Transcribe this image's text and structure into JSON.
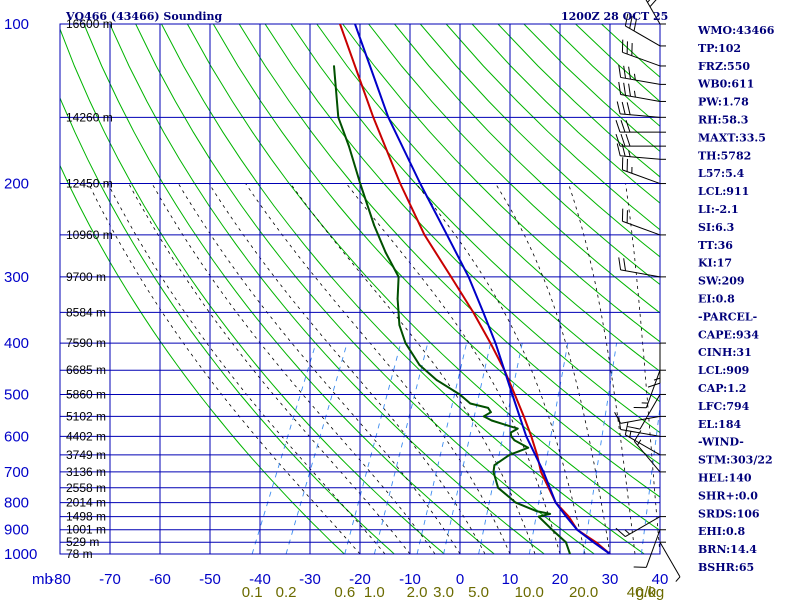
{
  "header": {
    "title": "VQ466 (43466) Sounding",
    "time": "1200Z 28 OCT 25"
  },
  "indices": [
    "WMO:43466",
    "TP:102",
    "FRZ:550",
    "WB0:611",
    "PW:1.78",
    "RH:58.3",
    "MAXT:33.5",
    "TH:5782",
    "L57:5.4",
    "LCL:911",
    "LI:-2.1",
    "SI:6.3",
    "TT:36",
    "KI:17",
    "SW:209",
    "EI:0.8",
    "-PARCEL-",
    "CAPE:934",
    "CINH:31",
    "LCL:909",
    "CAP:1.2",
    "LFC:794",
    "EL:184",
    "-WIND-",
    "STM:303/22",
    "HEL:140",
    "SHR+:0.0",
    "SRDS:106",
    "EHI:0.8",
    "BRN:14.4",
    "BSHR:65"
  ],
  "colors": {
    "grid": "#0000b4",
    "dry_adiabat": "#00b400",
    "moist_adiabat": "#000000",
    "mixing_ratio": "#3c8cf0",
    "temperature": "#c80000",
    "dewpoint": "#005000",
    "parcel": "#0000c8",
    "wind_barb": "#000000"
  },
  "chart_data": {
    "type": "line",
    "title": "VQ466 (43466) Sounding",
    "xlabel": "",
    "ylabel": "mb",
    "xlim": [
      -80,
      40
    ],
    "ylim": [
      1000,
      100
    ],
    "y_scale": "log",
    "x_tick_labels": [
      "-80",
      "-70",
      "-60",
      "-50",
      "-40",
      "-30",
      "-20",
      "-10",
      "0",
      "10",
      "20",
      "30",
      "40"
    ],
    "pressure_ticks": [
      100,
      200,
      300,
      400,
      500,
      600,
      700,
      800,
      900,
      1000
    ],
    "pressure_tick_labels": [
      "100",
      "200",
      "300",
      "400",
      "500",
      "600",
      "700",
      "800",
      "900",
      "1000"
    ],
    "pressure_axis_unit": "mb",
    "height_labels": [
      {
        "p": 100,
        "label": "16600 m"
      },
      {
        "p": 150,
        "label": "14260 m"
      },
      {
        "p": 200,
        "label": "12450 m"
      },
      {
        "p": 250,
        "label": "10960 m"
      },
      {
        "p": 300,
        "label": "9700 m"
      },
      {
        "p": 350,
        "label": "8584 m"
      },
      {
        "p": 400,
        "label": "7590 m"
      },
      {
        "p": 450,
        "label": "6685 m"
      },
      {
        "p": 500,
        "label": "5860 m"
      },
      {
        "p": 550,
        "label": "5102 m"
      },
      {
        "p": 600,
        "label": "4402 m"
      },
      {
        "p": 650,
        "label": "3749 m"
      },
      {
        "p": 700,
        "label": "3136 m"
      },
      {
        "p": 750,
        "label": "2558 m"
      },
      {
        "p": 800,
        "label": "2014 m"
      },
      {
        "p": 850,
        "label": "1498 m"
      },
      {
        "p": 900,
        "label": "1001 m"
      },
      {
        "p": 950,
        "label": "529 m"
      },
      {
        "p": 1000,
        "label": "78 m"
      }
    ],
    "mixing_ratio_labels": [
      {
        "w": 0.1,
        "label": "0.1"
      },
      {
        "w": 0.2,
        "label": "0.2"
      },
      {
        "w": 0.6,
        "label": "0.6"
      },
      {
        "w": 1.0,
        "label": "1.0"
      },
      {
        "w": 2.0,
        "label": "2.0"
      },
      {
        "w": 3.0,
        "label": "3.0"
      },
      {
        "w": 5.0,
        "label": "5.0"
      },
      {
        "w": 10.0,
        "label": "10.0"
      },
      {
        "w": 20.0,
        "label": "20.0"
      },
      {
        "w": 40.0,
        "label": "40.0"
      }
    ],
    "mixing_ratio_unit": "g/kg",
    "series": [
      {
        "key": "temperature",
        "points": [
          [
            1000,
            30.0
          ],
          [
            950,
            26.0
          ],
          [
            900,
            21.0
          ],
          [
            850,
            18.0
          ],
          [
            800,
            14.0
          ],
          [
            700,
            8.0
          ],
          [
            650,
            5.5
          ],
          [
            600,
            2.5
          ],
          [
            550,
            -1.0
          ],
          [
            500,
            -5.0
          ],
          [
            450,
            -9.5
          ],
          [
            400,
            -15.0
          ],
          [
            350,
            -21.5
          ],
          [
            300,
            -29.5
          ],
          [
            250,
            -39.0
          ],
          [
            200,
            -49.0
          ],
          [
            150,
            -61.0
          ],
          [
            100,
            -77.0
          ]
        ]
      },
      {
        "key": "dewpoint",
        "points": [
          [
            1000,
            22.0
          ],
          [
            950,
            20.0
          ],
          [
            900,
            16.0
          ],
          [
            850,
            12.0
          ],
          [
            840,
            14.0
          ],
          [
            830,
            11.0
          ],
          [
            800,
            6.0
          ],
          [
            750,
            1.0
          ],
          [
            700,
            -1.5
          ],
          [
            680,
            -2.0
          ],
          [
            650,
            0.0
          ],
          [
            640,
            1.5
          ],
          [
            630,
            3.0
          ],
          [
            610,
            -0.5
          ],
          [
            600,
            -1.5
          ],
          [
            590,
            -2.0
          ],
          [
            580,
            -1.0
          ],
          [
            570,
            -4.0
          ],
          [
            560,
            -7.0
          ],
          [
            550,
            -9.0
          ],
          [
            540,
            -8.0
          ],
          [
            530,
            -9.0
          ],
          [
            520,
            -13.0
          ],
          [
            500,
            -16.0
          ],
          [
            470,
            -22.0
          ],
          [
            440,
            -27.0
          ],
          [
            400,
            -32.0
          ],
          [
            370,
            -35.0
          ],
          [
            330,
            -38.0
          ],
          [
            300,
            -40.0
          ],
          [
            270,
            -45.0
          ],
          [
            240,
            -50.0
          ],
          [
            200,
            -57.0
          ],
          [
            170,
            -63.0
          ],
          [
            150,
            -68.0
          ],
          [
            120,
            -74.0
          ]
        ]
      },
      {
        "key": "parcel",
        "points": [
          [
            1000,
            30.0
          ],
          [
            950,
            25.5
          ],
          [
            900,
            21.0
          ],
          [
            850,
            17.5
          ],
          [
            800,
            14.0
          ],
          [
            700,
            8.5
          ],
          [
            600,
            1.5
          ],
          [
            500,
            -5.5
          ],
          [
            450,
            -9.5
          ],
          [
            400,
            -14.0
          ],
          [
            350,
            -19.5
          ],
          [
            300,
            -26.0
          ],
          [
            250,
            -34.5
          ],
          [
            200,
            -45.0
          ],
          [
            150,
            -58.0
          ],
          [
            100,
            -74.0
          ]
        ]
      }
    ],
    "wind_profile": [
      {
        "p": 100,
        "dir": 330,
        "spd": 50
      },
      {
        "p": 110,
        "dir": 300,
        "spd": 30
      },
      {
        "p": 120,
        "dir": 290,
        "spd": 30
      },
      {
        "p": 130,
        "dir": 280,
        "spd": 35
      },
      {
        "p": 140,
        "dir": 280,
        "spd": 35
      },
      {
        "p": 150,
        "dir": 275,
        "spd": 30
      },
      {
        "p": 160,
        "dir": 270,
        "spd": 30
      },
      {
        "p": 170,
        "dir": 270,
        "spd": 30
      },
      {
        "p": 180,
        "dir": 275,
        "spd": 25
      },
      {
        "p": 200,
        "dir": 290,
        "spd": 25
      },
      {
        "p": 250,
        "dir": 290,
        "spd": 20
      },
      {
        "p": 300,
        "dir": 280,
        "spd": 20
      },
      {
        "p": 400,
        "dir": 180,
        "spd": 15
      },
      {
        "p": 450,
        "dir": 200,
        "spd": 15
      },
      {
        "p": 500,
        "dir": 210,
        "spd": 10
      },
      {
        "p": 550,
        "dir": 260,
        "spd": 10
      },
      {
        "p": 600,
        "dir": 280,
        "spd": 10
      },
      {
        "p": 650,
        "dir": 300,
        "spd": 15
      },
      {
        "p": 700,
        "dir": 320,
        "spd": 15
      },
      {
        "p": 850,
        "dir": 240,
        "spd": 15
      },
      {
        "p": 900,
        "dir": 200,
        "spd": 10
      },
      {
        "p": 950,
        "dir": 150,
        "spd": 5
      }
    ],
    "grid": true
  }
}
